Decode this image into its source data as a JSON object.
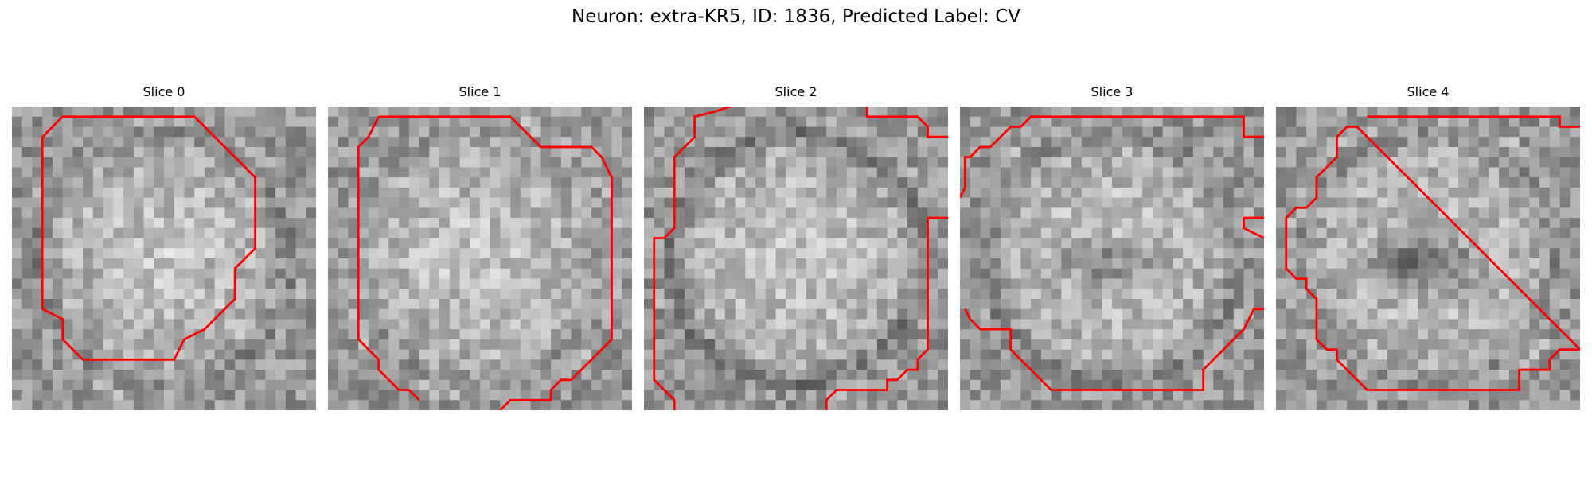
{
  "figure": {
    "title": "Neuron: extra-KR5, ID: 1836, Predicted Label: CV"
  },
  "panels": [
    {
      "title": "Slice 0",
      "dark_blob": 0.0,
      "ring": 0.55
    },
    {
      "title": "Slice 1",
      "dark_blob": 0.0,
      "ring": 0.35
    },
    {
      "title": "Slice 2",
      "dark_blob": 0.0,
      "ring": 0.75
    },
    {
      "title": "Slice 3",
      "dark_blob": 0.45,
      "ring": 0.6
    },
    {
      "title": "Slice 4",
      "dark_blob": 0.8,
      "ring": 0.45
    }
  ],
  "colors": {
    "contour": "#ff0000",
    "background": "#ffffff"
  }
}
